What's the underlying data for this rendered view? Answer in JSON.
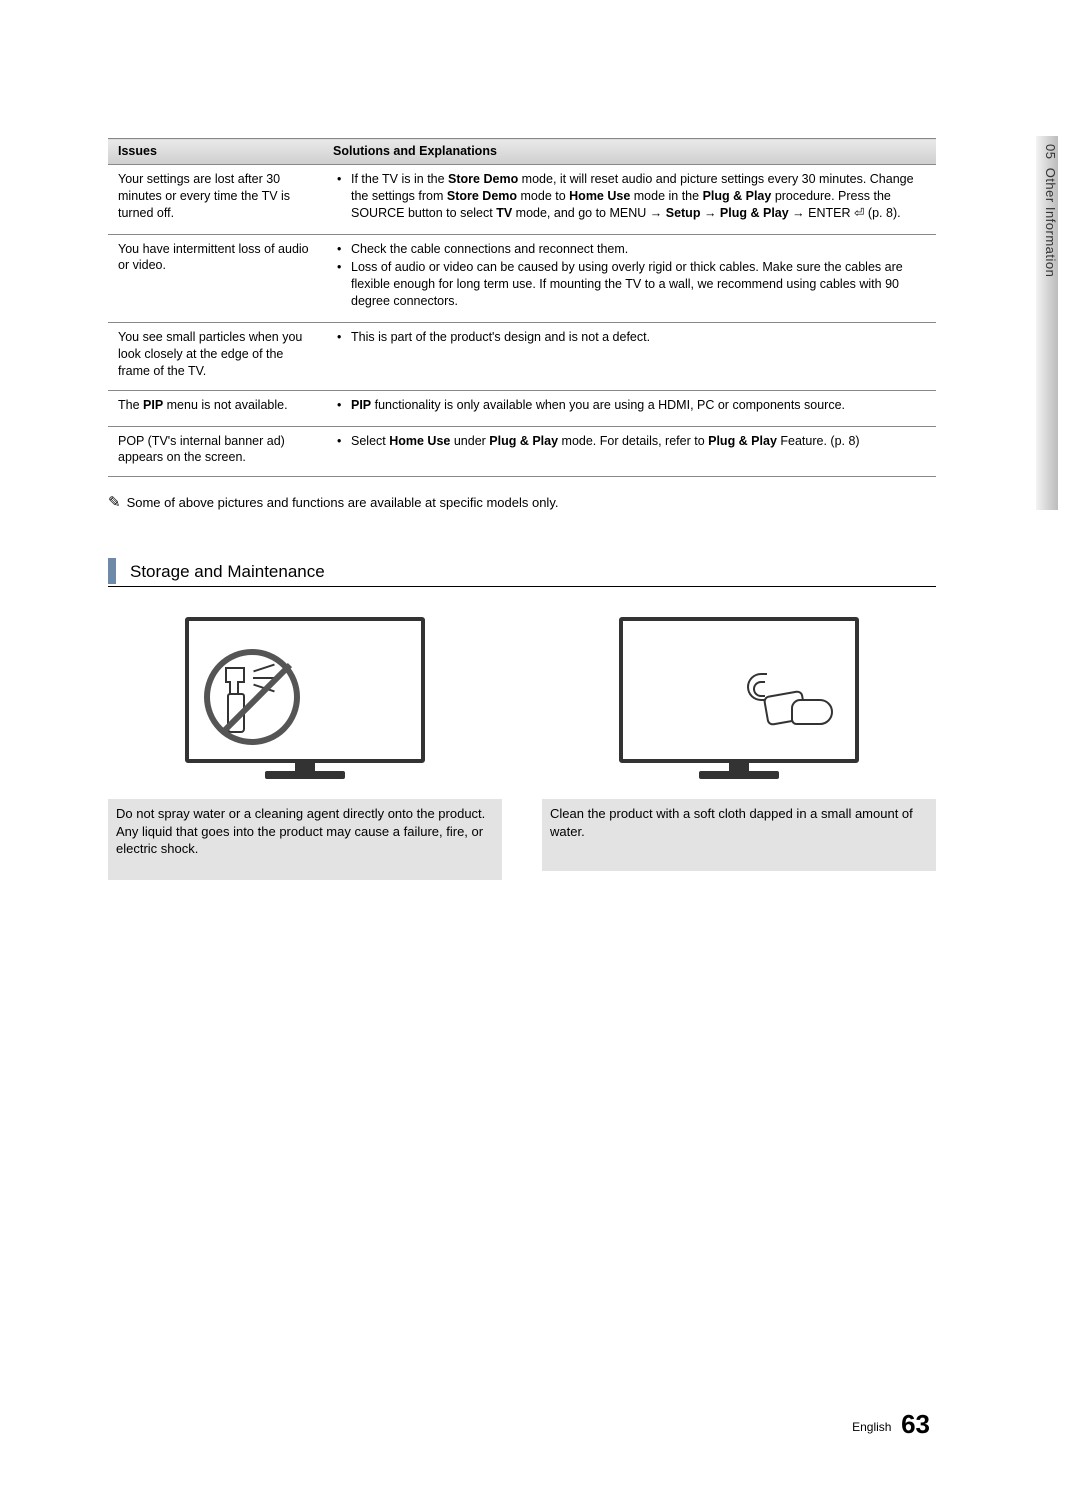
{
  "side_tab": {
    "chapter": "05",
    "title": "Other Information"
  },
  "table": {
    "headers": {
      "issues": "Issues",
      "solutions": "Solutions and Explanations"
    },
    "rows": [
      {
        "issue": "Your settings are lost after 30 minutes or every time the TV is turned off.",
        "solutions_html": "If the TV is in the <b>Store Demo</b> mode, it will reset audio and picture settings every 30 minutes. Change the settings from <b>Store Demo</b> mode to <b>Home Use</b> mode in the <b>Plug & Play</b> procedure. Press the SOURCE button to select <b>TV</b> mode, and go to MENU → <b>Setup</b> → <b>Plug & Play</b> → ENTER ⏎ (p. 8)."
      },
      {
        "issue": "You have intermittent loss of audio or video.",
        "solutions_html": "Check the cable connections and reconnect them.|Loss of audio or video can be caused by using overly rigid or thick cables. Make sure the cables are flexible enough for long term use. If mounting the TV to a wall, we recommend using cables with 90 degree connectors."
      },
      {
        "issue": "You see small particles when you look closely at the edge of the frame of the TV.",
        "solutions_html": "This is part of the product's design and is not a defect."
      },
      {
        "issue_html": "The <b>PIP</b> menu is not available.",
        "solutions_html": "<b>PIP</b> functionality is only available when you are using a HDMI, PC or components source."
      },
      {
        "issue": "POP (TV's internal banner ad) appears on the screen.",
        "solutions_html": "Select <b>Home Use</b> under <b>Plug & Play</b> mode. For details, refer to <b>Plug & Play</b> Feature. (p. 8)"
      }
    ]
  },
  "note": {
    "icon": "✎",
    "text": "Some of above pictures and functions are available at specific models only."
  },
  "section": {
    "title": "Storage and Maintenance"
  },
  "maintenance": {
    "left_caption": "Do not spray water or a cleaning agent directly onto the product. Any liquid that goes into the product may cause a failure, fire, or electric shock.",
    "right_caption": "Clean the product with a soft cloth dapped in a small amount of water."
  },
  "footer": {
    "lang": "English",
    "page": "63"
  },
  "colors": {
    "heading_bar": "#6f8aa8",
    "caption_bg": "#e3e3e3",
    "th_grad_top": "#e9e9e9",
    "th_grad_bot": "#cfcfcf",
    "border": "#888888"
  }
}
